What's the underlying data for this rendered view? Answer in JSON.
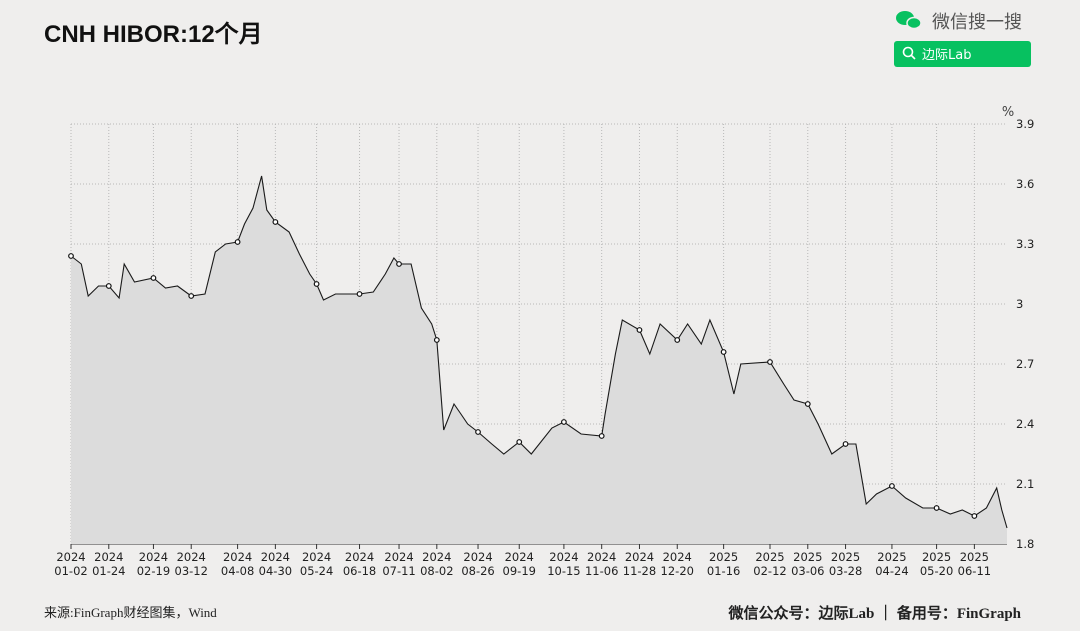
{
  "chart_data": {
    "type": "line",
    "title": "CNH HIBOR:12个月",
    "y_unit": "%",
    "x": [
      "2024-01-02",
      "2024-01-08",
      "2024-01-12",
      "2024-01-18",
      "2024-01-24",
      "2024-01-30",
      "2024-02-02",
      "2024-02-08",
      "2024-02-19",
      "2024-02-26",
      "2024-03-04",
      "2024-03-12",
      "2024-03-20",
      "2024-03-26",
      "2024-04-01",
      "2024-04-08",
      "2024-04-12",
      "2024-04-17",
      "2024-04-22",
      "2024-04-25",
      "2024-04-30",
      "2024-05-08",
      "2024-05-14",
      "2024-05-20",
      "2024-05-24",
      "2024-05-28",
      "2024-06-04",
      "2024-06-18",
      "2024-06-26",
      "2024-07-03",
      "2024-07-08",
      "2024-07-11",
      "2024-07-18",
      "2024-07-24",
      "2024-07-30",
      "2024-08-02",
      "2024-08-06",
      "2024-08-12",
      "2024-08-16",
      "2024-08-20",
      "2024-08-26",
      "2024-09-03",
      "2024-09-10",
      "2024-09-19",
      "2024-09-26",
      "2024-10-08",
      "2024-10-15",
      "2024-10-25",
      "2024-11-06",
      "2024-11-08",
      "2024-11-14",
      "2024-11-18",
      "2024-11-28",
      "2024-12-04",
      "2024-12-10",
      "2024-12-20",
      "2024-12-26",
      "2025-01-03",
      "2025-01-08",
      "2025-01-16",
      "2025-01-22",
      "2025-01-26",
      "2025-02-12",
      "2025-02-20",
      "2025-02-26",
      "2025-03-06",
      "2025-03-12",
      "2025-03-20",
      "2025-03-28",
      "2025-04-03",
      "2025-04-09",
      "2025-04-15",
      "2025-04-24",
      "2025-05-02",
      "2025-05-12",
      "2025-05-20",
      "2025-05-28",
      "2025-06-04",
      "2025-06-11",
      "2025-06-18",
      "2025-06-24",
      "2025-06-27",
      "2025-06-30"
    ],
    "values": [
      3.24,
      3.2,
      3.04,
      3.09,
      3.09,
      3.03,
      3.2,
      3.11,
      3.13,
      3.08,
      3.09,
      3.04,
      3.05,
      3.26,
      3.3,
      3.31,
      3.4,
      3.48,
      3.64,
      3.47,
      3.41,
      3.36,
      3.25,
      3.15,
      3.1,
      3.02,
      3.05,
      3.05,
      3.06,
      3.15,
      3.23,
      3.2,
      3.2,
      2.98,
      2.9,
      2.82,
      2.37,
      2.5,
      2.45,
      2.4,
      2.36,
      2.3,
      2.25,
      2.31,
      2.25,
      2.38,
      2.41,
      2.35,
      2.34,
      2.45,
      2.75,
      2.92,
      2.87,
      2.75,
      2.9,
      2.82,
      2.9,
      2.8,
      2.92,
      2.76,
      2.55,
      2.7,
      2.71,
      2.6,
      2.52,
      2.5,
      2.4,
      2.25,
      2.3,
      2.3,
      2.0,
      2.05,
      2.09,
      2.03,
      1.98,
      1.98,
      1.95,
      1.97,
      1.94,
      1.98,
      2.08,
      1.97,
      1.88
    ],
    "color": "#1a1a1a",
    "area_color": "#dcdcdc",
    "markers_at_ticks": true,
    "grid": true,
    "xlim": [
      "2024-01-02",
      "2025-06-30"
    ],
    "xticks": [
      {
        "value": "2024-01-02",
        "label": [
          "2024",
          "01-02"
        ]
      },
      {
        "value": "2024-01-24",
        "label": [
          "2024",
          "01-24"
        ]
      },
      {
        "value": "2024-02-19",
        "label": [
          "2024",
          "02-19"
        ]
      },
      {
        "value": "2024-03-12",
        "label": [
          "2024",
          "03-12"
        ]
      },
      {
        "value": "2024-04-08",
        "label": [
          "2024",
          "04-08"
        ]
      },
      {
        "value": "2024-04-30",
        "label": [
          "2024",
          "04-30"
        ]
      },
      {
        "value": "2024-05-24",
        "label": [
          "2024",
          "05-24"
        ]
      },
      {
        "value": "2024-06-18",
        "label": [
          "2024",
          "06-18"
        ]
      },
      {
        "value": "2024-07-11",
        "label": [
          "2024",
          "07-11"
        ]
      },
      {
        "value": "2024-08-02",
        "label": [
          "2024",
          "08-02"
        ]
      },
      {
        "value": "2024-08-26",
        "label": [
          "2024",
          "08-26"
        ]
      },
      {
        "value": "2024-09-19",
        "label": [
          "2024",
          "09-19"
        ]
      },
      {
        "value": "2024-10-15",
        "label": [
          "2024",
          "10-15"
        ]
      },
      {
        "value": "2024-11-06",
        "label": [
          "2024",
          "11-06"
        ]
      },
      {
        "value": "2024-11-28",
        "label": [
          "2024",
          "11-28"
        ]
      },
      {
        "value": "2024-12-20",
        "label": [
          "2024",
          "12-20"
        ]
      },
      {
        "value": "2025-01-16",
        "label": [
          "2025",
          "01-16"
        ]
      },
      {
        "value": "2025-02-12",
        "label": [
          "2025",
          "02-12"
        ]
      },
      {
        "value": "2025-03-06",
        "label": [
          "2025",
          "03-06"
        ]
      },
      {
        "value": "2025-03-28",
        "label": [
          "2025",
          "03-28"
        ]
      },
      {
        "value": "2025-04-24",
        "label": [
          "2025",
          "04-24"
        ]
      },
      {
        "value": "2025-05-20",
        "label": [
          "2025",
          "05-20"
        ]
      },
      {
        "value": "2025-06-11",
        "label": [
          "2025",
          "06-11"
        ]
      }
    ],
    "ylim": [
      1.8,
      3.9
    ],
    "yticks": [
      1.8,
      2.1,
      2.4,
      2.7,
      3,
      3.3,
      3.6,
      3.9
    ]
  },
  "header": {
    "brand": "微信搜一搜",
    "search_button": "边际Lab"
  },
  "footer": {
    "source": "来源:FinGraph财经图集，Wind",
    "credit": "微信公众号：边际Lab  ｜  备用号：FinGraph"
  }
}
